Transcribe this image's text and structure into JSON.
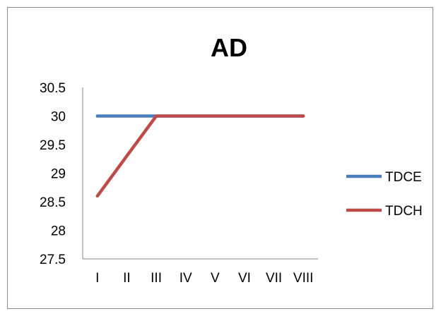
{
  "chart_data": {
    "type": "line",
    "title": "AD",
    "xlabel": "",
    "ylabel": "",
    "categories": [
      "I",
      "II",
      "III",
      "IV",
      "V",
      "VI",
      "VII",
      "VIII"
    ],
    "ylim": [
      27.5,
      30.5
    ],
    "yticks": [
      "30.5",
      "30",
      "29.5",
      "29",
      "28.5",
      "28",
      "27.5"
    ],
    "ytick_values": [
      30.5,
      30,
      29.5,
      29,
      28.5,
      28,
      27.5
    ],
    "grid": false,
    "legend_position": "right",
    "series": [
      {
        "name": "TDCE",
        "color": "#4a7ebb",
        "values": [
          30,
          30,
          30,
          30,
          30,
          30,
          30,
          30
        ]
      },
      {
        "name": "TDCH",
        "color": "#be4b48",
        "values": [
          28.6,
          29.3,
          30,
          30,
          30,
          30,
          30,
          30
        ]
      }
    ]
  }
}
